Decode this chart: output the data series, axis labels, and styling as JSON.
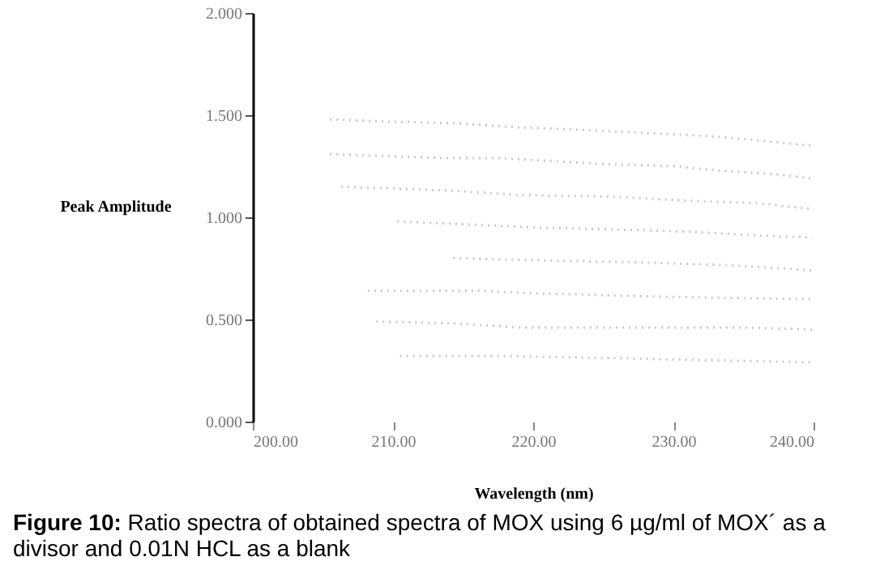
{
  "chart_data": {
    "type": "line",
    "xlabel": "Wavelength (nm)",
    "ylabel": "Peak Amplitude",
    "annotations": [
      "Figure 10: Ratio spectra of obtained spectra of MOX using 6 µg/ml of MOX´ as a divisor and 0.01N HCL as a blank"
    ],
    "xlim": [
      200,
      240
    ],
    "ylim": [
      0,
      2
    ],
    "xticks": [
      {
        "value": 200,
        "label": "200.00"
      },
      {
        "value": 210,
        "label": "210.00"
      },
      {
        "value": 220,
        "label": "220.00"
      },
      {
        "value": 230,
        "label": "230.00"
      },
      {
        "value": 240,
        "label": "240.00"
      }
    ],
    "yticks": [
      {
        "value": 0,
        "label": "0.000"
      },
      {
        "value": 0.5,
        "label": "0.500"
      },
      {
        "value": 1,
        "label": "1.000"
      },
      {
        "value": 1.5,
        "label": "1.500"
      },
      {
        "value": 2,
        "label": "2.000"
      }
    ],
    "grid": false,
    "line_style": "dotted",
    "marker": "none",
    "series": [
      {
        "color": "#c8c8c8",
        "x": [
          205.5,
          208.8,
          214.5,
          219,
          222.8,
          228.6,
          232,
          235.5,
          239.9
        ],
        "values": [
          1.48,
          1.47,
          1.46,
          1.44,
          1.43,
          1.41,
          1.4,
          1.38,
          1.35
        ]
      },
      {
        "color": "#c8c8c8",
        "x": [
          205.5,
          209.3,
          213.4,
          217.6,
          225.1,
          230.1,
          233,
          237.4,
          239.9
        ],
        "values": [
          1.31,
          1.3,
          1.29,
          1.29,
          1.26,
          1.25,
          1.23,
          1.21,
          1.19
        ]
      },
      {
        "color": "#c8c8c8",
        "x": [
          206.3,
          214.3,
          218.8,
          225.9,
          231.3,
          235.9,
          239.9
        ],
        "values": [
          1.15,
          1.13,
          1.11,
          1.1,
          1.08,
          1.07,
          1.04
        ]
      },
      {
        "color": "#c8c8c8",
        "x": [
          210.3,
          220.3,
          226.1,
          230.9,
          236.3,
          239.9
        ],
        "values": [
          0.98,
          0.95,
          0.94,
          0.93,
          0.91,
          0.9
        ]
      },
      {
        "color": "#c8c8c8",
        "x": [
          214.3,
          219.9,
          227,
          232,
          235.5,
          239.9
        ],
        "values": [
          0.8,
          0.79,
          0.78,
          0.77,
          0.76,
          0.74
        ]
      },
      {
        "color": "#c8c8c8",
        "x": [
          208.2,
          216.3,
          219.3,
          229.7,
          238.6,
          239.9
        ],
        "values": [
          0.64,
          0.64,
          0.63,
          0.61,
          0.6,
          0.6
        ]
      },
      {
        "color": "#c8c8c8",
        "x": [
          208.8,
          214.5,
          219.3,
          225.1,
          229.7,
          235.5,
          239.9
        ],
        "values": [
          0.49,
          0.48,
          0.46,
          0.46,
          0.46,
          0.46,
          0.45
        ]
      },
      {
        "color": "#c8c8c8",
        "x": [
          210.5,
          218.2,
          226.3,
          232.8,
          239.9
        ],
        "values": [
          0.32,
          0.32,
          0.31,
          0.3,
          0.29
        ]
      }
    ]
  }
}
